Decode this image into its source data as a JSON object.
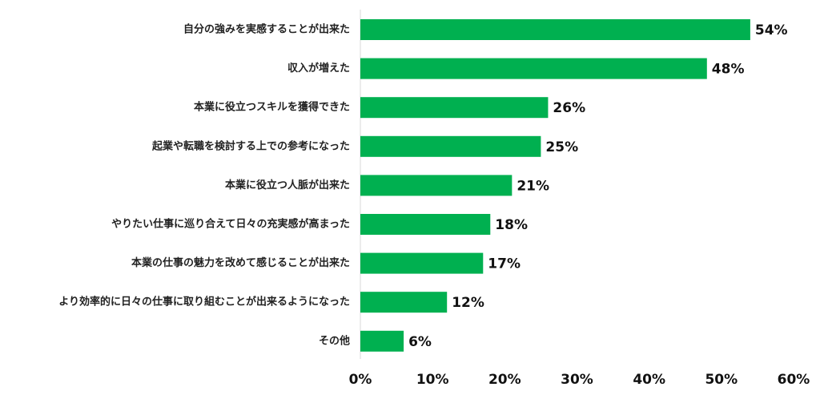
{
  "chart_data": {
    "type": "bar",
    "orientation": "horizontal",
    "categories": [
      "自分の強みを実感することが出来た",
      "収入が増えた",
      "本業に役立つスキルを獲得できた",
      "起業や転職を検討する上での参考になった",
      "本業に役立つ人脈が出来た",
      "やりたい仕事に巡り合えて日々の充実感が高まった",
      "本業の仕事の魅力を改めて感じることが出来た",
      "より効率的に日々の仕事に取り組むことが出来るようになった",
      "その他"
    ],
    "values": [
      54,
      48,
      26,
      25,
      21,
      18,
      17,
      12,
      6
    ],
    "value_labels": [
      "54%",
      "48%",
      "26%",
      "25%",
      "21%",
      "18%",
      "17%",
      "12%",
      "6%"
    ],
    "xlim": [
      0,
      60
    ],
    "x_ticks": [
      "0%",
      "10%",
      "20%",
      "30%",
      "40%",
      "50%",
      "60%"
    ],
    "bar_color": "#00b050",
    "grid": false,
    "legend": "none"
  }
}
